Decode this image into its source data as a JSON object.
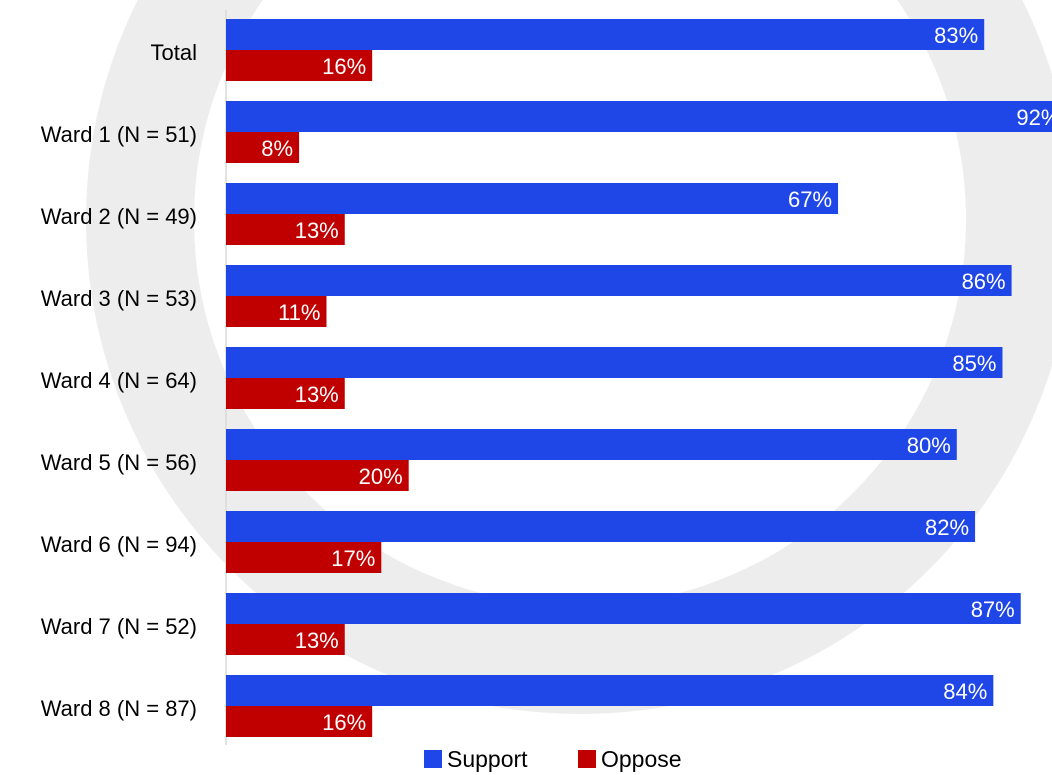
{
  "chart_data": {
    "type": "bar",
    "orientation": "horizontal",
    "categories": [
      "Total",
      "Ward 1 (N = 51)",
      "Ward 2 (N = 49)",
      "Ward 3 (N = 53)",
      "Ward 4 (N = 64)",
      "Ward 5 (N = 56)",
      "Ward 6 (N = 94)",
      "Ward 7 (N = 52)",
      "Ward 8 (N = 87)"
    ],
    "series": [
      {
        "name": "Support",
        "color": "#1f47e8",
        "values": [
          83,
          92,
          67,
          86,
          85,
          80,
          82,
          87,
          84
        ],
        "labels": [
          "83%",
          "92%",
          "67%",
          "86%",
          "85%",
          "80%",
          "82%",
          "87%",
          "84%"
        ]
      },
      {
        "name": "Oppose",
        "color": "#c00000",
        "values": [
          16,
          8,
          13,
          11,
          13,
          20,
          17,
          13,
          16
        ],
        "labels": [
          "16%",
          "8%",
          "13%",
          "11%",
          "13%",
          "20%",
          "17%",
          "13%",
          "16%"
        ]
      }
    ],
    "xlim": [
      0,
      100
    ],
    "legend_position": "bottom",
    "grid": false
  }
}
